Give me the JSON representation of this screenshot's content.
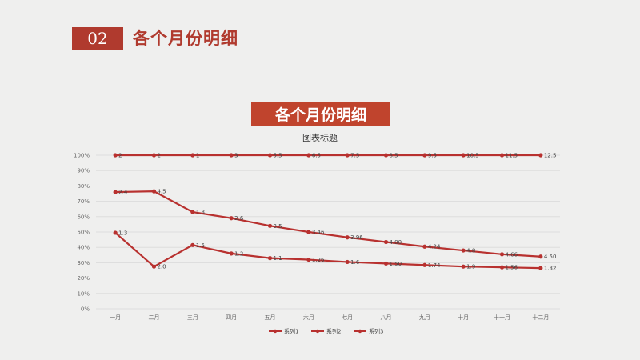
{
  "header": {
    "badge": "02",
    "title": "各个月份明细"
  },
  "chart_banner": "各个月份明细",
  "colors": {
    "accent": "#b03a2e",
    "series": "#b8312f",
    "background": "#efefee"
  },
  "chart_data": {
    "type": "line",
    "title": "图表标题",
    "categories": [
      "一月",
      "二月",
      "三月",
      "四月",
      "五月",
      "六月",
      "七月",
      "八月",
      "九月",
      "十月",
      "十一月",
      "十二月"
    ],
    "y_ticks": [
      "0%",
      "10%",
      "20%",
      "30%",
      "40%",
      "50%",
      "60%",
      "70%",
      "80%",
      "90%",
      "100%"
    ],
    "ylim": [
      0,
      100
    ],
    "grid": true,
    "legend_position": "bottom",
    "series": [
      {
        "name": "系列1",
        "values": [
          100,
          100,
          100,
          100,
          100,
          100,
          100,
          100,
          100,
          100,
          100,
          100
        ],
        "labels": [
          "2",
          "2",
          "1",
          "3",
          "5.5",
          "6.5",
          "7.5",
          "8.5",
          "9.5",
          "10.5",
          "11.5",
          "12.5"
        ]
      },
      {
        "name": "系列2",
        "values": [
          76,
          76.5,
          63,
          59,
          54,
          50,
          46.5,
          43.5,
          40.5,
          38,
          35.5,
          34
        ],
        "labels": [
          "2.4",
          "4.5",
          "1.8",
          "2.6",
          "3.5",
          "3.46",
          "3.96",
          "4.00",
          "4.24",
          "4.8",
          "4.66",
          "4.50"
        ]
      },
      {
        "name": "系列3",
        "values": [
          49.5,
          27.5,
          41.5,
          36,
          33,
          32,
          30.5,
          29.5,
          28.5,
          27.5,
          27,
          26.5
        ],
        "labels": [
          "1.3",
          "2.0",
          "1.5",
          "1.2",
          "1.1",
          "1.26",
          "1.6",
          "1.50",
          "1.74",
          "1.9",
          "1.56",
          "1.32"
        ]
      }
    ]
  }
}
